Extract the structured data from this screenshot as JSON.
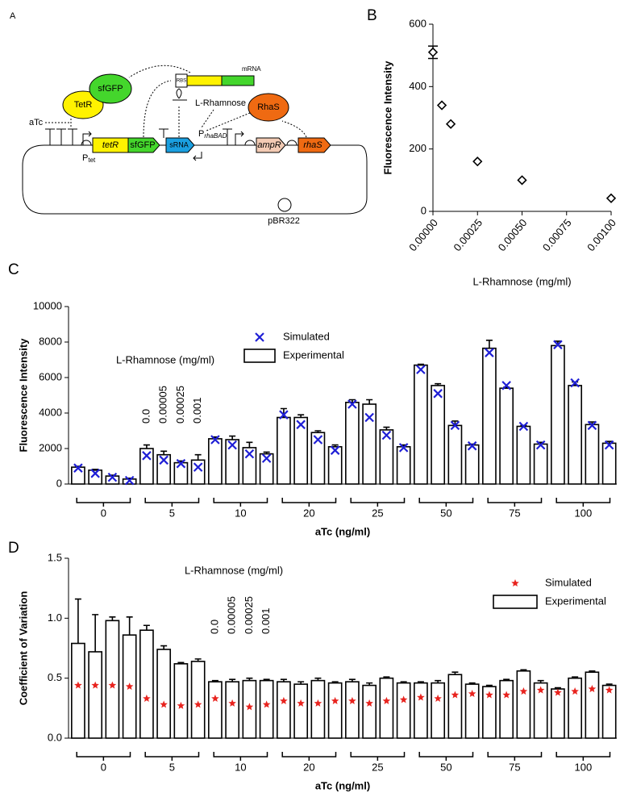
{
  "diagram": {
    "panel_label": "A",
    "tetr_protein": "TetR",
    "sfgfp_protein": "sfGFP",
    "rhas_protein": "RhaS",
    "mrna": "mRNA",
    "rbs": "RBS",
    "inducer_rha": "L-Rhamnose",
    "inducer_atc": "aTc",
    "p_tet": {
      "main": "P",
      "sub": "tet"
    },
    "tetr_gene": "tetR",
    "sfgfp_gene": "sfGFP",
    "srna": "sRNA",
    "p_rha": {
      "main": "P",
      "sub": "rhaBAD"
    },
    "ampr_gene": "ampR",
    "rhas_gene": "rhaS",
    "origin": "pBR322"
  },
  "chart_data": [
    {
      "type": "scatter",
      "panel_label": "B",
      "x_label": "L-Rhamnose (mg/ml)",
      "y_label": "Fluorescence Intensity",
      "x": [
        0,
        5e-05,
        0.0001,
        0.00025,
        0.0005,
        0.001
      ],
      "values": [
        510,
        340,
        280,
        160,
        100,
        42
      ],
      "errors": [
        20,
        null,
        null,
        null,
        null,
        null
      ],
      "color": "#000000",
      "marker": "diamond",
      "xlim": [
        0,
        0.001
      ],
      "xticks": [
        {
          "value": 0,
          "label": "0.00000"
        },
        {
          "value": 0.00025,
          "label": "0.00025"
        },
        {
          "value": 0.0005,
          "label": "0.00050"
        },
        {
          "value": 0.00075,
          "label": "0.00075"
        },
        {
          "value": 0.001,
          "label": "0.00100"
        }
      ],
      "ylim": [
        0,
        600
      ],
      "yticks": [
        0,
        200,
        400,
        600
      ]
    },
    {
      "type": "grouped_bar",
      "panel_label": "C",
      "x_label": "aTc (ng/ml)",
      "y_label": "Fluorescence Intensity",
      "annotation": "L-Rhamnose (mg/ml)",
      "subgroup_labels": [
        "0.0",
        "0.00005",
        "0.00025",
        "0.001"
      ],
      "categories": [
        "0",
        "5",
        "10",
        "20",
        "25",
        "50",
        "75",
        "100"
      ],
      "series": [
        {
          "name": "Simulated",
          "color": "#1f1fd6",
          "marker": "x",
          "values": [
            [
              900,
              600,
              380,
              200
            ],
            [
              1600,
              1350,
              1150,
              950
            ],
            [
              2500,
              2200,
              1700,
              1450
            ],
            [
              3900,
              3350,
              2500,
              1900
            ],
            [
              4500,
              3750,
              2750,
              2050
            ],
            [
              6450,
              5100,
              3300,
              2150
            ],
            [
              7400,
              5550,
              3250,
              2200
            ],
            [
              7850,
              5700,
              3300,
              2200
            ]
          ]
        },
        {
          "name": "Experimental",
          "color": "#ffffff",
          "values": [
            [
              950,
              780,
              450,
              280
            ],
            [
              2000,
              1650,
              1200,
              1350
            ],
            [
              2550,
              2500,
              2050,
              1700
            ],
            [
              3750,
              3750,
              2900,
              2100
            ],
            [
              4600,
              4500,
              3050,
              2100
            ],
            [
              6700,
              5550,
              3300,
              2200
            ],
            [
              7650,
              5400,
              3250,
              2250
            ],
            [
              7800,
              5550,
              3350,
              2300
            ]
          ],
          "errors": [
            [
              50,
              50,
              50,
              50
            ],
            [
              200,
              200,
              100,
              300
            ],
            [
              100,
              200,
              300,
              100
            ],
            [
              500,
              150,
              100,
              100
            ],
            [
              150,
              250,
              150,
              100
            ],
            [
              50,
              100,
              250,
              50
            ],
            [
              450,
              50,
              50,
              100
            ],
            [
              250,
              200,
              150,
              100
            ]
          ]
        }
      ],
      "ylim": [
        0,
        10000
      ],
      "yticks": [
        0,
        2000,
        4000,
        6000,
        8000,
        10000
      ],
      "legend": "top"
    },
    {
      "type": "grouped_bar",
      "panel_label": "D",
      "x_label": "aTc (ng/ml)",
      "y_label": "Coefficient of  Variation",
      "annotation": "L-Rhamnose (mg/ml)",
      "subgroup_labels": [
        "0.0",
        "0.00005",
        "0.00025",
        "0.001"
      ],
      "categories": [
        "0",
        "5",
        "10",
        "20",
        "25",
        "50",
        "75",
        "100"
      ],
      "series": [
        {
          "name": "Simulated",
          "color": "#e8231e",
          "marker": "star",
          "values": [
            [
              0.44,
              0.44,
              0.44,
              0.43
            ],
            [
              0.33,
              0.28,
              0.27,
              0.28
            ],
            [
              0.33,
              0.29,
              0.26,
              0.28
            ],
            [
              0.31,
              0.29,
              0.29,
              0.31
            ],
            [
              0.31,
              0.29,
              0.31,
              0.32
            ],
            [
              0.34,
              0.33,
              0.36,
              0.37
            ],
            [
              0.36,
              0.36,
              0.39,
              0.4
            ],
            [
              0.38,
              0.39,
              0.41,
              0.4
            ]
          ]
        },
        {
          "name": "Experimental",
          "color": "#ffffff",
          "values": [
            [
              0.79,
              0.72,
              0.98,
              0.86
            ],
            [
              0.9,
              0.74,
              0.62,
              0.64
            ],
            [
              0.47,
              0.47,
              0.48,
              0.48
            ],
            [
              0.47,
              0.45,
              0.48,
              0.46
            ],
            [
              0.47,
              0.44,
              0.5,
              0.46
            ],
            [
              0.46,
              0.46,
              0.53,
              0.45
            ],
            [
              0.43,
              0.48,
              0.56,
              0.46
            ],
            [
              0.41,
              0.5,
              0.55,
              0.44
            ]
          ],
          "errors": [
            [
              0.37,
              0.31,
              0.03,
              0.15
            ],
            [
              0.04,
              0.03,
              0.01,
              0.02
            ],
            [
              0.01,
              0.02,
              0.02,
              0.01
            ],
            [
              0.02,
              0.02,
              0.02,
              0.01
            ],
            [
              0.02,
              0.02,
              0.01,
              0.01
            ],
            [
              0.01,
              0.02,
              0.02,
              0.01
            ],
            [
              0.01,
              0.01,
              0.01,
              0.02
            ],
            [
              0.01,
              0.01,
              0.01,
              0.01
            ]
          ]
        }
      ],
      "ylim": [
        0,
        1.5
      ],
      "yticks": [
        {
          "value": 0,
          "label": "0.0"
        },
        {
          "value": 0.5,
          "label": "0.5"
        },
        {
          "value": 1,
          "label": "1.0"
        },
        {
          "value": 1.5,
          "label": "1.5"
        }
      ],
      "legend": "right"
    }
  ]
}
